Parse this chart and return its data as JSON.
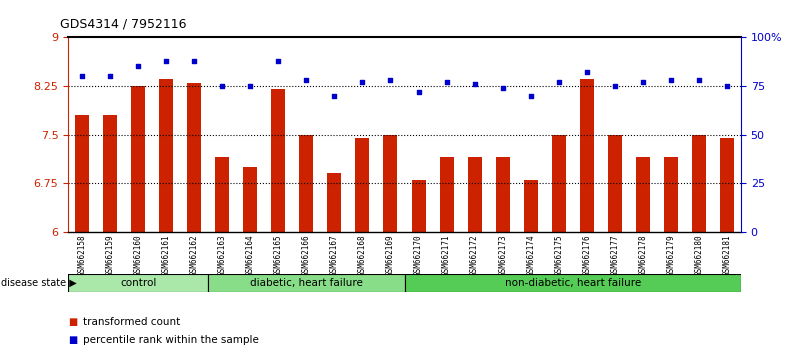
{
  "title": "GDS4314 / 7952116",
  "samples": [
    "GSM662158",
    "GSM662159",
    "GSM662160",
    "GSM662161",
    "GSM662162",
    "GSM662163",
    "GSM662164",
    "GSM662165",
    "GSM662166",
    "GSM662167",
    "GSM662168",
    "GSM662169",
    "GSM662170",
    "GSM662171",
    "GSM662172",
    "GSM662173",
    "GSM662174",
    "GSM662175",
    "GSM662176",
    "GSM662177",
    "GSM662178",
    "GSM662179",
    "GSM662180",
    "GSM662181"
  ],
  "bar_values": [
    7.8,
    7.8,
    8.25,
    8.35,
    8.3,
    7.15,
    7.0,
    8.2,
    7.5,
    6.9,
    7.45,
    7.5,
    6.8,
    7.15,
    7.15,
    7.15,
    6.8,
    7.5,
    8.35,
    7.5,
    7.15,
    7.15,
    7.5,
    7.45
  ],
  "dot_values": [
    80,
    80,
    85,
    88,
    88,
    75,
    75,
    88,
    78,
    70,
    77,
    78,
    72,
    77,
    76,
    74,
    70,
    77,
    82,
    75,
    77,
    78,
    78,
    75
  ],
  "groups": [
    {
      "label": "control",
      "start": 0,
      "end": 5
    },
    {
      "label": "diabetic, heart failure",
      "start": 5,
      "end": 12
    },
    {
      "label": "non-diabetic, heart failure",
      "start": 12,
      "end": 24
    }
  ],
  "group_colors": [
    "#aae8aa",
    "#88dd88",
    "#55cc55"
  ],
  "bar_color": "#cc2200",
  "dot_color": "#0000cc",
  "ylim_left": [
    6,
    9
  ],
  "ylim_right": [
    0,
    100
  ],
  "yticks_left": [
    6,
    6.75,
    7.5,
    8.25,
    9
  ],
  "yticks_right": [
    0,
    25,
    50,
    75,
    100
  ],
  "ytick_labels_left": [
    "6",
    "6.75",
    "7.5",
    "8.25",
    "9"
  ],
  "ytick_labels_right": [
    "0",
    "25",
    "50",
    "75",
    "100%"
  ],
  "hlines": [
    6.75,
    7.5,
    8.25
  ],
  "disease_state_label": "disease state",
  "legend_bar_label": "transformed count",
  "legend_dot_label": "percentile rank within the sample",
  "background_color": "#ffffff",
  "tick_label_color_left": "#cc2200",
  "tick_label_color_right": "#0000cc"
}
